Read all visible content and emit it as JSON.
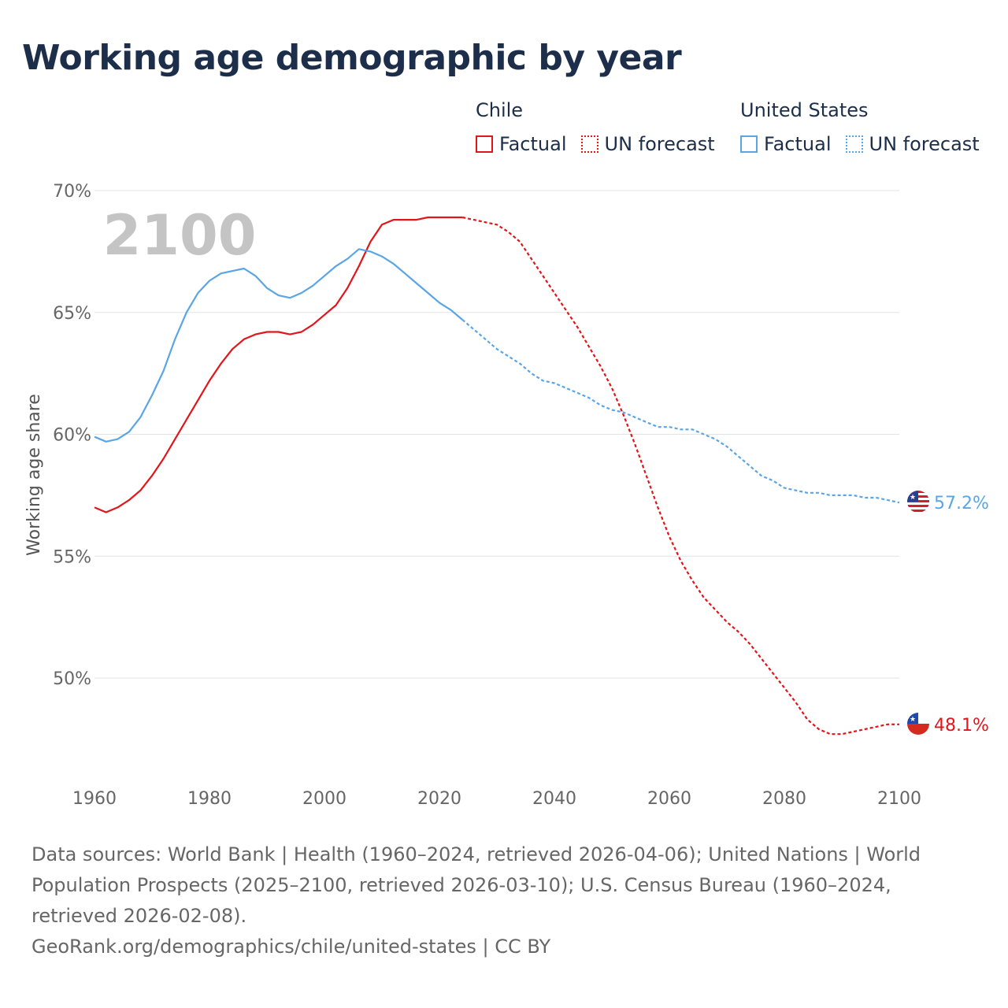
{
  "title": "Working age demographic by year",
  "legend": {
    "groups": [
      {
        "country": "Chile",
        "color": "#e0161b",
        "factual_label": "Factual",
        "forecast_label": "UN forecast"
      },
      {
        "country": "United States",
        "color": "#5aa5e6",
        "factual_label": "Factual",
        "forecast_label": "UN forecast"
      }
    ]
  },
  "chart_data": {
    "type": "line",
    "title": "Working age demographic by year",
    "xlabel": "",
    "ylabel": "Working age share",
    "xlim": [
      1960,
      2100
    ],
    "ylim": [
      46,
      70
    ],
    "x_ticks": [
      1960,
      1980,
      2000,
      2020,
      2040,
      2060,
      2080,
      2100
    ],
    "x_tick_labels": [
      "1960",
      "1980",
      "2000",
      "2020",
      "2040",
      "2060",
      "2080",
      "2100"
    ],
    "y_ticks": [
      50,
      55,
      60,
      65,
      70
    ],
    "y_tick_labels": [
      "50%",
      "55%",
      "60%",
      "65%",
      "70%"
    ],
    "grid": true,
    "year_watermark": "2100",
    "factual_end_year": 2024,
    "series": [
      {
        "name": "Chile",
        "color": "#e0161b",
        "end_label": "48.1%",
        "flag": "chile-flag",
        "points": [
          [
            1960,
            57.0
          ],
          [
            1962,
            56.8
          ],
          [
            1964,
            57.0
          ],
          [
            1966,
            57.3
          ],
          [
            1968,
            57.7
          ],
          [
            1970,
            58.3
          ],
          [
            1972,
            59.0
          ],
          [
            1974,
            59.8
          ],
          [
            1976,
            60.6
          ],
          [
            1978,
            61.4
          ],
          [
            1980,
            62.2
          ],
          [
            1982,
            62.9
          ],
          [
            1984,
            63.5
          ],
          [
            1986,
            63.9
          ],
          [
            1988,
            64.1
          ],
          [
            1990,
            64.2
          ],
          [
            1992,
            64.2
          ],
          [
            1994,
            64.1
          ],
          [
            1996,
            64.2
          ],
          [
            1998,
            64.5
          ],
          [
            2000,
            64.9
          ],
          [
            2002,
            65.3
          ],
          [
            2004,
            66.0
          ],
          [
            2006,
            66.9
          ],
          [
            2008,
            67.9
          ],
          [
            2010,
            68.6
          ],
          [
            2012,
            68.8
          ],
          [
            2014,
            68.8
          ],
          [
            2016,
            68.8
          ],
          [
            2018,
            68.9
          ],
          [
            2020,
            68.9
          ],
          [
            2022,
            68.9
          ],
          [
            2024,
            68.9
          ],
          [
            2026,
            68.8
          ],
          [
            2028,
            68.7
          ],
          [
            2030,
            68.6
          ],
          [
            2032,
            68.3
          ],
          [
            2034,
            67.9
          ],
          [
            2036,
            67.2
          ],
          [
            2038,
            66.5
          ],
          [
            2040,
            65.8
          ],
          [
            2042,
            65.1
          ],
          [
            2044,
            64.4
          ],
          [
            2046,
            63.6
          ],
          [
            2048,
            62.8
          ],
          [
            2050,
            61.9
          ],
          [
            2052,
            60.8
          ],
          [
            2054,
            59.6
          ],
          [
            2056,
            58.3
          ],
          [
            2058,
            57.0
          ],
          [
            2060,
            55.8
          ],
          [
            2062,
            54.8
          ],
          [
            2064,
            54.0
          ],
          [
            2066,
            53.3
          ],
          [
            2068,
            52.8
          ],
          [
            2070,
            52.3
          ],
          [
            2072,
            51.9
          ],
          [
            2074,
            51.4
          ],
          [
            2076,
            50.8
          ],
          [
            2078,
            50.2
          ],
          [
            2080,
            49.6
          ],
          [
            2082,
            49.0
          ],
          [
            2084,
            48.3
          ],
          [
            2086,
            47.9
          ],
          [
            2088,
            47.7
          ],
          [
            2090,
            47.7
          ],
          [
            2092,
            47.8
          ],
          [
            2094,
            47.9
          ],
          [
            2096,
            48.0
          ],
          [
            2098,
            48.1
          ],
          [
            2100,
            48.1
          ]
        ]
      },
      {
        "name": "United States",
        "color": "#5aa5e6",
        "end_label": "57.2%",
        "flag": "us-flag",
        "points": [
          [
            1960,
            59.9
          ],
          [
            1962,
            59.7
          ],
          [
            1964,
            59.8
          ],
          [
            1966,
            60.1
          ],
          [
            1968,
            60.7
          ],
          [
            1970,
            61.6
          ],
          [
            1972,
            62.6
          ],
          [
            1974,
            63.9
          ],
          [
            1976,
            65.0
          ],
          [
            1978,
            65.8
          ],
          [
            1980,
            66.3
          ],
          [
            1982,
            66.6
          ],
          [
            1984,
            66.7
          ],
          [
            1986,
            66.8
          ],
          [
            1988,
            66.5
          ],
          [
            1990,
            66.0
          ],
          [
            1992,
            65.7
          ],
          [
            1994,
            65.6
          ],
          [
            1996,
            65.8
          ],
          [
            1998,
            66.1
          ],
          [
            2000,
            66.5
          ],
          [
            2002,
            66.9
          ],
          [
            2004,
            67.2
          ],
          [
            2006,
            67.6
          ],
          [
            2008,
            67.5
          ],
          [
            2010,
            67.3
          ],
          [
            2012,
            67.0
          ],
          [
            2014,
            66.6
          ],
          [
            2016,
            66.2
          ],
          [
            2018,
            65.8
          ],
          [
            2020,
            65.4
          ],
          [
            2022,
            65.1
          ],
          [
            2024,
            64.7
          ],
          [
            2026,
            64.3
          ],
          [
            2028,
            63.9
          ],
          [
            2030,
            63.5
          ],
          [
            2032,
            63.2
          ],
          [
            2034,
            62.9
          ],
          [
            2036,
            62.5
          ],
          [
            2038,
            62.2
          ],
          [
            2040,
            62.1
          ],
          [
            2042,
            61.9
          ],
          [
            2044,
            61.7
          ],
          [
            2046,
            61.5
          ],
          [
            2048,
            61.2
          ],
          [
            2050,
            61.0
          ],
          [
            2052,
            60.9
          ],
          [
            2054,
            60.7
          ],
          [
            2056,
            60.5
          ],
          [
            2058,
            60.3
          ],
          [
            2060,
            60.3
          ],
          [
            2062,
            60.2
          ],
          [
            2064,
            60.2
          ],
          [
            2066,
            60.0
          ],
          [
            2068,
            59.8
          ],
          [
            2070,
            59.5
          ],
          [
            2072,
            59.1
          ],
          [
            2074,
            58.7
          ],
          [
            2076,
            58.3
          ],
          [
            2078,
            58.1
          ],
          [
            2080,
            57.8
          ],
          [
            2082,
            57.7
          ],
          [
            2084,
            57.6
          ],
          [
            2086,
            57.6
          ],
          [
            2088,
            57.5
          ],
          [
            2090,
            57.5
          ],
          [
            2092,
            57.5
          ],
          [
            2094,
            57.4
          ],
          [
            2096,
            57.4
          ],
          [
            2098,
            57.3
          ],
          [
            2100,
            57.2
          ]
        ]
      }
    ]
  },
  "footer": {
    "sources": "Data sources: World Bank | Health (1960–2024, retrieved 2026-04-06); United Nations | World Population Prospects (2025–2100, retrieved 2026-03-10); U.S. Census Bureau (1960–2024, retrieved 2026-02-08).",
    "attribution": "GeoRank.org/demographics/chile/united-states | CC BY"
  }
}
